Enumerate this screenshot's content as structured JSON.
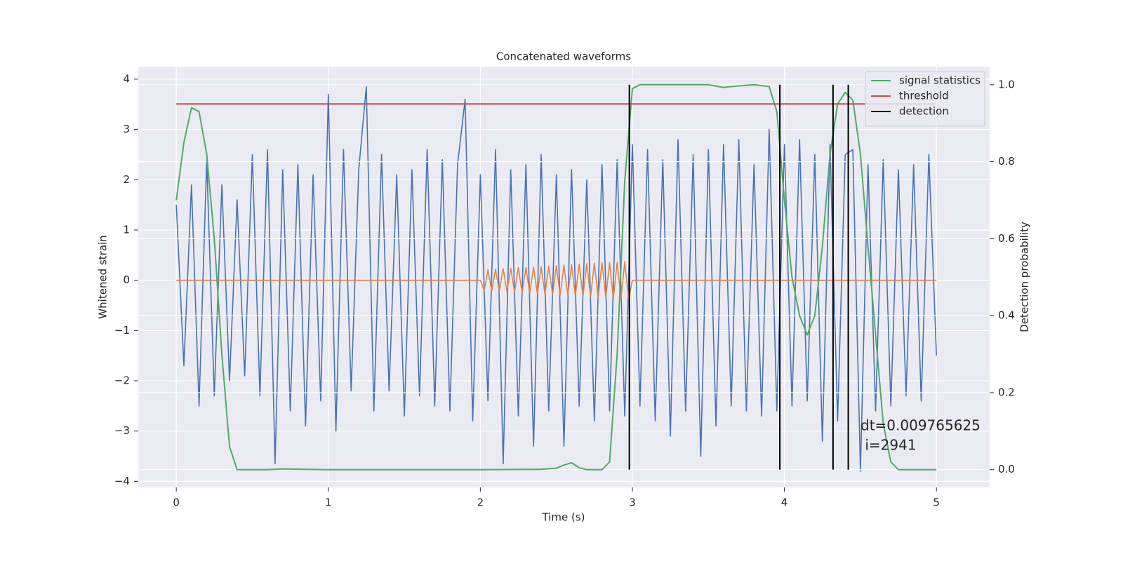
{
  "chart_data": {
    "type": "line",
    "title": "Concatenated waveforms",
    "x_label": "Time (s)",
    "y_label": "Whitened strain",
    "y2_label": "Detection probability",
    "xlim": [
      -0.25,
      5.35
    ],
    "ylim": [
      -4.12,
      4.25
    ],
    "y2lim": [
      -0.046,
      1.047
    ],
    "xticks": [
      0,
      1,
      2,
      3,
      4,
      5
    ],
    "yticks": [
      {
        "value": -4,
        "label": "−4"
      },
      {
        "value": -3,
        "label": "−3"
      },
      {
        "value": -2,
        "label": "−2"
      },
      {
        "value": -1,
        "label": "−1"
      },
      0,
      1,
      2,
      3,
      4
    ],
    "y2ticks": [
      {
        "value": 0,
        "label": "0.0"
      },
      0.2,
      0.4,
      0.6,
      0.8,
      {
        "value": 1,
        "label": "1.0"
      }
    ],
    "grid": true,
    "background": "#eaeaf2",
    "legend_position": "upper right",
    "annotations": [
      "dt=0.009765625",
      " i=2941"
    ],
    "series": [
      {
        "color": "#4c72b0",
        "x": [
          0,
          0.05,
          0.1,
          0.15,
          0.2,
          0.25,
          0.3,
          0.35,
          0.4,
          0.45,
          0.5,
          0.55,
          0.6,
          0.65,
          0.7,
          0.75,
          0.8,
          0.85,
          0.9,
          0.95,
          1,
          1.05,
          1.1,
          1.15,
          1.2,
          1.25,
          1.3,
          1.35,
          1.4,
          1.45,
          1.5,
          1.55,
          1.6,
          1.65,
          1.7,
          1.75,
          1.8,
          1.85,
          1.9,
          1.95,
          2,
          2.05,
          2.1,
          2.15,
          2.2,
          2.25,
          2.3,
          2.35,
          2.4,
          2.45,
          2.5,
          2.55,
          2.6,
          2.65,
          2.7,
          2.75,
          2.8,
          2.85,
          2.9,
          2.95,
          3,
          3.05,
          3.1,
          3.15,
          3.2,
          3.25,
          3.3,
          3.35,
          3.4,
          3.45,
          3.5,
          3.55,
          3.6,
          3.65,
          3.7,
          3.75,
          3.8,
          3.85,
          3.9,
          3.95,
          4,
          4.05,
          4.1,
          4.15,
          4.2,
          4.25,
          4.3,
          4.35,
          4.4,
          4.45,
          4.5,
          4.55,
          4.6,
          4.65,
          4.7,
          4.75,
          4.8,
          4.85,
          4.9,
          4.95,
          5
        ],
        "values": [
          1.5,
          -1.7,
          1.9,
          -2.5,
          2.4,
          -2.3,
          1.9,
          -2.0,
          1.6,
          -1.9,
          2.5,
          -2.3,
          2.6,
          -3.65,
          2.2,
          -2.6,
          2.3,
          -2.9,
          2.1,
          -2.4,
          3.7,
          -3.0,
          2.6,
          -2.2,
          2.2,
          3.85,
          -2.6,
          2.5,
          -2.2,
          2.1,
          -2.7,
          2.2,
          -2.3,
          2.6,
          -2.5,
          2.4,
          -2.6,
          2.3,
          3.6,
          -2.8,
          2.1,
          -2.4,
          2.6,
          -3.65,
          2.2,
          -2.7,
          2.3,
          -3.3,
          2.5,
          -2.6,
          2.1,
          -3.3,
          2.2,
          -2.5,
          2.0,
          -2.8,
          2.3,
          -2.6,
          2.4,
          -2.7,
          2.7,
          -2.5,
          2.6,
          -2.8,
          2.4,
          -3.1,
          2.8,
          -2.6,
          2.5,
          -3.5,
          2.6,
          -2.9,
          2.7,
          -2.5,
          2.8,
          -2.6,
          2.3,
          -2.7,
          3.0,
          -2.6,
          2.7,
          -2.5,
          2.8,
          -2.4,
          2.5,
          -3.2,
          2.7,
          -2.8,
          2.5,
          2.6,
          -3.8,
          2.3,
          -2.6,
          2.4,
          -2.5,
          2.2,
          -2.3,
          2.3,
          -2.4,
          2.5,
          -1.5
        ]
      },
      {
        "color": "#dd8452",
        "x": [
          0,
          2.0,
          2.025,
          2.05,
          2.075,
          2.1,
          2.125,
          2.15,
          2.175,
          2.2,
          2.225,
          2.25,
          2.275,
          2.3,
          2.325,
          2.35,
          2.375,
          2.4,
          2.425,
          2.45,
          2.475,
          2.5,
          2.525,
          2.55,
          2.575,
          2.6,
          2.625,
          2.65,
          2.675,
          2.7,
          2.725,
          2.75,
          2.775,
          2.8,
          2.825,
          2.85,
          2.875,
          2.9,
          2.925,
          2.95,
          2.975,
          3.0,
          5
        ],
        "values": [
          0,
          0,
          -0.2,
          0.21,
          -0.21,
          0.22,
          -0.22,
          0.23,
          -0.23,
          0.24,
          -0.24,
          0.25,
          -0.25,
          0.25,
          -0.26,
          0.26,
          -0.27,
          0.27,
          -0.28,
          0.28,
          -0.29,
          0.29,
          -0.3,
          0.3,
          -0.3,
          0.31,
          -0.31,
          0.32,
          -0.32,
          0.33,
          -0.33,
          0.34,
          -0.34,
          0.35,
          -0.35,
          0.35,
          -0.36,
          0.36,
          -0.37,
          0.37,
          -0.38,
          0,
          0
        ]
      },
      {
        "name": "signal statistics",
        "color": "#55a868",
        "axis": "y2",
        "x": [
          0,
          0.05,
          0.1,
          0.15,
          0.2,
          0.25,
          0.3,
          0.35,
          0.4,
          0.6,
          0.7,
          1.0,
          1.5,
          2.0,
          2.4,
          2.5,
          2.55,
          2.6,
          2.65,
          2.7,
          2.8,
          2.85,
          2.9,
          2.95,
          3.0,
          3.05,
          3.5,
          3.6,
          3.65,
          3.8,
          3.9,
          3.95,
          4.0,
          4.05,
          4.1,
          4.15,
          4.2,
          4.25,
          4.3,
          4.35,
          4.4,
          4.45,
          4.5,
          4.55,
          4.6,
          4.65,
          4.7,
          4.75,
          5.0
        ],
        "values": [
          0.7,
          0.85,
          0.94,
          0.93,
          0.82,
          0.6,
          0.3,
          0.06,
          0,
          0,
          0.002,
          0,
          0,
          0,
          0.001,
          0.004,
          0.012,
          0.018,
          0.005,
          0,
          0,
          0.02,
          0.3,
          0.75,
          0.99,
          1,
          1,
          0.993,
          0.995,
          1,
          0.995,
          0.93,
          0.7,
          0.5,
          0.4,
          0.35,
          0.4,
          0.58,
          0.82,
          0.95,
          0.98,
          0.96,
          0.82,
          0.58,
          0.35,
          0.12,
          0.02,
          0,
          0
        ]
      },
      {
        "name": "threshold",
        "color": "#c44e52",
        "axis": "y2",
        "x": [
          0,
          5
        ],
        "values": [
          0.95,
          0.95
        ]
      },
      {
        "name": "detection",
        "color": "#000000",
        "axis": "y2",
        "style": "vlines",
        "x": [
          2.98,
          3.97,
          4.32,
          4.42
        ]
      }
    ]
  }
}
